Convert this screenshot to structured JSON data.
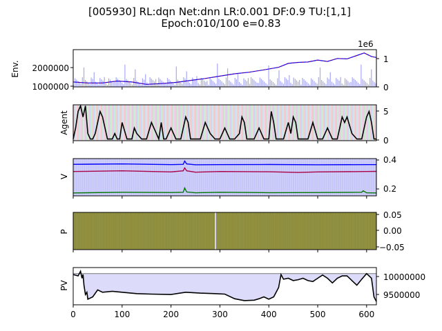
{
  "title_line1": "[005930] RL:dqn Net:dnn LR:0.001 DF:0.9 TU:[1,1]",
  "title_line2": "Epoch:010/100 e=0.83",
  "chart_data": [
    {
      "panel": "env",
      "type": "line",
      "ylabel": "Env.",
      "left_yticks": [
        "2000000",
        "1000000"
      ],
      "left_ylim": [
        950000,
        2850000
      ],
      "right_offset_label": "1e6",
      "right_yticks": [
        "1",
        "0"
      ],
      "right_ylim": [
        0,
        1.25
      ],
      "xlim": [
        0,
        620
      ],
      "series": [
        {
          "name": "",
          "color": "#0000ff",
          "role": "price line",
          "x": [
            0,
            30,
            60,
            90,
            120,
            150,
            180,
            210,
            240,
            270,
            300,
            330,
            360,
            390,
            420,
            440,
            460,
            480,
            500,
            520,
            540,
            560,
            580,
            595,
            610,
            620
          ],
          "y": [
            1200000,
            1150000,
            1150000,
            1250000,
            1200000,
            1080000,
            1120000,
            1180000,
            1280000,
            1380000,
            1500000,
            1620000,
            1700000,
            1820000,
            1950000,
            2150000,
            2200000,
            2220000,
            2320000,
            2250000,
            2400000,
            2380000,
            2550000,
            2680000,
            2500000,
            2450000
          ]
        },
        {
          "name": "",
          "color": "#cc0033",
          "role": "action markers (overlay)"
        },
        {
          "name": "",
          "color": "#a0a0ff",
          "role": "volume bars (right axis)"
        }
      ]
    },
    {
      "panel": "agent",
      "type": "line",
      "ylabel": "Agent",
      "right_yticks": [
        "5",
        "0"
      ],
      "ylim": [
        -0.3,
        6.2
      ],
      "xlim": [
        0,
        620
      ],
      "series": [
        {
          "name": "",
          "color": "#000000",
          "x": [
            0,
            5,
            10,
            15,
            20,
            25,
            30,
            35,
            40,
            45,
            50,
            55,
            60,
            65,
            70,
            75,
            80,
            85,
            90,
            95,
            100,
            110,
            120,
            125,
            130,
            140,
            150,
            160,
            170,
            175,
            180,
            185,
            190,
            200,
            210,
            215,
            220,
            230,
            235,
            240,
            250,
            260,
            270,
            280,
            290,
            300,
            310,
            320,
            330,
            340,
            345,
            350,
            355,
            360,
            370,
            380,
            390,
            400,
            405,
            410,
            415,
            420,
            430,
            440,
            445,
            450,
            455,
            460,
            470,
            480,
            490,
            500,
            505,
            510,
            520,
            530,
            540,
            550,
            555,
            560,
            570,
            580,
            590,
            600,
            605,
            610,
            615,
            620
          ],
          "y": [
            0,
            2,
            5,
            6,
            4,
            6,
            1,
            0,
            0,
            1,
            3,
            5,
            4,
            2,
            0,
            0,
            0,
            1,
            0,
            0,
            3,
            0,
            0,
            2,
            1,
            0,
            0,
            3,
            1,
            0,
            3,
            0,
            0,
            2,
            0,
            0,
            0,
            4,
            3,
            0,
            0,
            0,
            3,
            1,
            0,
            0,
            2,
            0,
            0,
            1,
            4,
            3,
            0,
            0,
            0,
            2,
            0,
            0,
            5,
            3,
            0,
            0,
            0,
            3,
            1,
            4,
            3,
            0,
            0,
            0,
            3,
            0,
            0,
            0,
            2,
            0,
            0,
            4,
            3,
            4,
            1,
            0,
            0,
            4,
            5,
            3,
            0,
            0
          ]
        }
      ]
    },
    {
      "panel": "value",
      "type": "line",
      "ylabel": "V",
      "right_yticks": [
        "0.4",
        "0.2"
      ],
      "ylim": [
        0.155,
        0.415
      ],
      "xlim": [
        0,
        620
      ],
      "series": [
        {
          "name": "",
          "color": "#0000ff",
          "x": [
            0,
            100,
            200,
            225,
            228,
            232,
            250,
            300,
            400,
            500,
            600,
            620
          ],
          "y": [
            0.375,
            0.378,
            0.373,
            0.375,
            0.398,
            0.378,
            0.372,
            0.373,
            0.374,
            0.372,
            0.373,
            0.373
          ]
        },
        {
          "name": "",
          "color": "#aa0044",
          "x": [
            0,
            100,
            200,
            225,
            228,
            232,
            250,
            300,
            400,
            460,
            500,
            600,
            620
          ],
          "y": [
            0.325,
            0.33,
            0.322,
            0.33,
            0.35,
            0.33,
            0.32,
            0.325,
            0.323,
            0.318,
            0.322,
            0.325,
            0.326
          ]
        },
        {
          "name": "",
          "color": "#007700",
          "x": [
            0,
            100,
            200,
            225,
            228,
            232,
            250,
            300,
            400,
            500,
            590,
            593,
            600,
            620
          ],
          "y": [
            0.175,
            0.18,
            0.178,
            0.18,
            0.21,
            0.182,
            0.176,
            0.18,
            0.177,
            0.178,
            0.18,
            0.19,
            0.176,
            0.175
          ]
        }
      ]
    },
    {
      "panel": "policy",
      "type": "line",
      "ylabel": "P",
      "right_yticks": [
        "0.05",
        "0.00",
        "−0.05"
      ],
      "ylim": [
        -0.055,
        0.055
      ],
      "xlim": [
        0,
        620
      ],
      "fill_color": "#8b8b3a"
    },
    {
      "panel": "pv",
      "type": "line",
      "ylabel": "PV",
      "right_yticks": [
        "10000000",
        "9500000"
      ],
      "ylim": [
        9330000,
        10130000
      ],
      "xlim": [
        0,
        620
      ],
      "xticks": [
        0,
        100,
        200,
        300,
        400,
        500,
        600
      ],
      "baseline": 10000000,
      "series": [
        {
          "name": "",
          "color": "#000000",
          "x": [
            0,
            10,
            15,
            18,
            20,
            22,
            25,
            28,
            30,
            40,
            50,
            60,
            80,
            100,
            130,
            160,
            200,
            230,
            260,
            290,
            310,
            330,
            350,
            370,
            380,
            390,
            400,
            410,
            420,
            425,
            430,
            440,
            450,
            460,
            470,
            480,
            490,
            500,
            510,
            520,
            530,
            540,
            550,
            560,
            570,
            580,
            590,
            600,
            605,
            610,
            615,
            620
          ],
          "y": [
            9980000,
            9950000,
            10050000,
            9900000,
            9980000,
            9750000,
            9550000,
            9600000,
            9450000,
            9500000,
            9650000,
            9600000,
            9620000,
            9600000,
            9570000,
            9560000,
            9550000,
            9600000,
            9580000,
            9570000,
            9560000,
            9460000,
            9420000,
            9430000,
            9460000,
            9500000,
            9450000,
            9500000,
            9700000,
            9980000,
            9880000,
            9900000,
            9850000,
            9870000,
            9900000,
            9850000,
            9830000,
            9900000,
            9970000,
            9900000,
            9800000,
            9900000,
            9950000,
            9950000,
            9850000,
            9750000,
            9880000,
            10000000,
            9950000,
            9900000,
            9500000,
            9400000
          ]
        }
      ]
    }
  ]
}
